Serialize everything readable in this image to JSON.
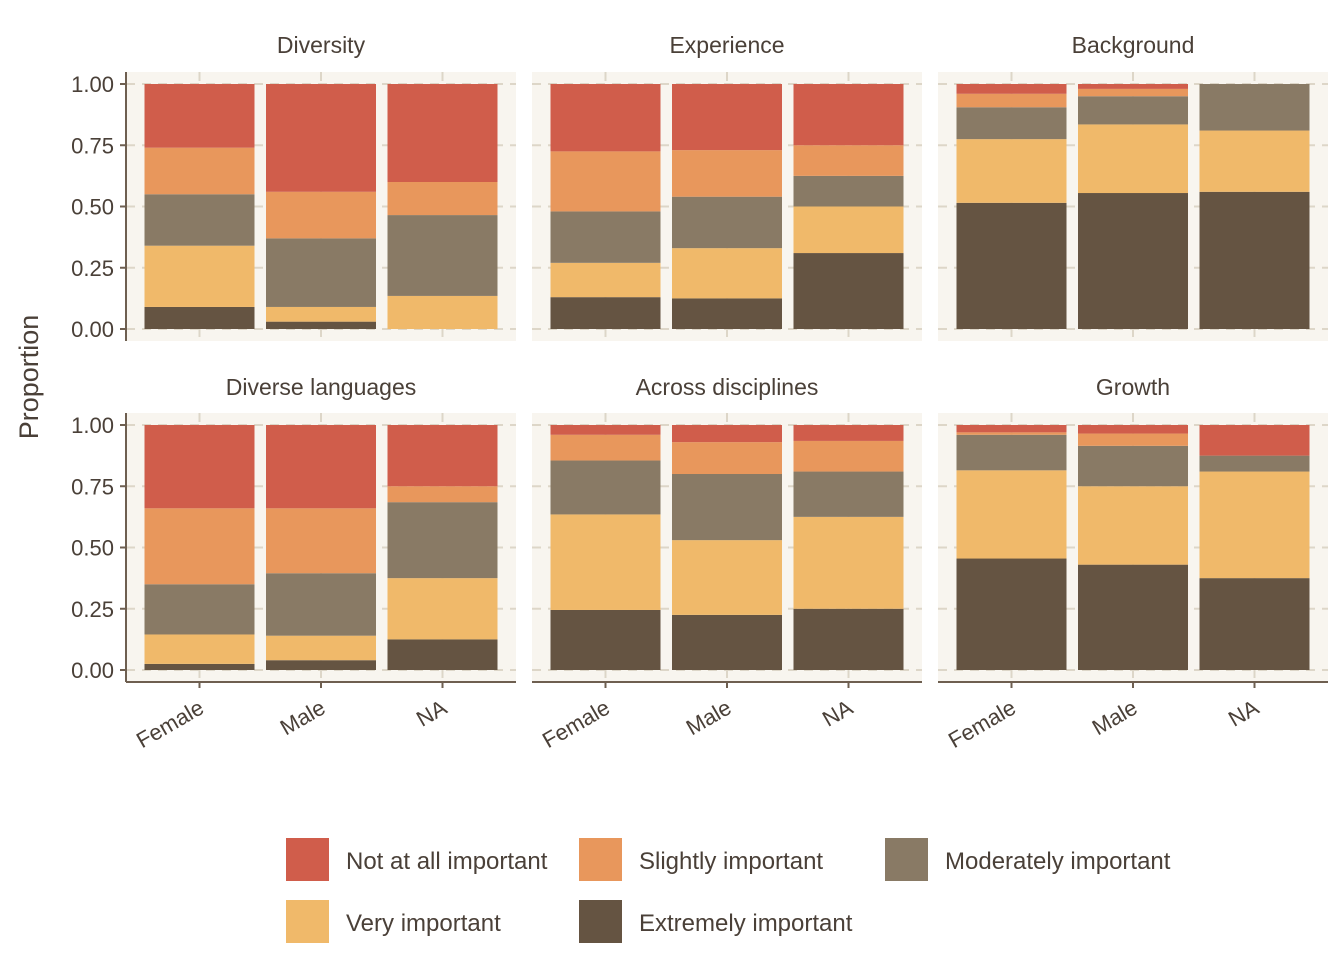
{
  "chart_data": {
    "type": "bar",
    "stacked": true,
    "orientation": "vertical",
    "xlabel": "",
    "ylabel": "Proportion",
    "ylim": [
      0,
      1
    ],
    "yticks": [
      "0.00",
      "0.25",
      "0.50",
      "0.75",
      "1.00"
    ],
    "categories": [
      "Female",
      "Male",
      "NA"
    ],
    "grid": "dashed major gridlines",
    "legend_position": "bottom",
    "levels": [
      {
        "name": "Not at all important",
        "color": "#d05d4b"
      },
      {
        "name": "Slightly important",
        "color": "#e8975c"
      },
      {
        "name": "Moderately important",
        "color": "#897a65"
      },
      {
        "name": "Very important",
        "color": "#f0b96a"
      },
      {
        "name": "Extremely important",
        "color": "#655442"
      }
    ],
    "legend_order": [
      "Not at all important",
      "Slightly important",
      "Moderately important",
      "Very important",
      "Extremely important"
    ],
    "stack_order_bottom_to_top": [
      "Extremely important",
      "Very important",
      "Moderately important",
      "Slightly important",
      "Not at all important"
    ],
    "facets": [
      {
        "title": "Diversity",
        "values": {
          "Female": [
            0.09,
            0.25,
            0.21,
            0.19,
            0.26
          ],
          "Male": [
            0.03,
            0.06,
            0.28,
            0.19,
            0.44
          ],
          "NA": [
            0.0,
            0.135,
            0.33,
            0.135,
            0.4
          ]
        }
      },
      {
        "title": "Experience",
        "values": {
          "Female": [
            0.13,
            0.14,
            0.21,
            0.245,
            0.275
          ],
          "Male": [
            0.125,
            0.205,
            0.21,
            0.19,
            0.27
          ],
          "NA": [
            0.31,
            0.19,
            0.125,
            0.125,
            0.25
          ]
        }
      },
      {
        "title": "Background",
        "values": {
          "Female": [
            0.515,
            0.26,
            0.13,
            0.055,
            0.04
          ],
          "Male": [
            0.555,
            0.28,
            0.115,
            0.03,
            0.02
          ],
          "NA": [
            0.56,
            0.25,
            0.19,
            0.0,
            0.0
          ]
        }
      },
      {
        "title": "Diverse languages",
        "values": {
          "Female": [
            0.025,
            0.12,
            0.205,
            0.31,
            0.34
          ],
          "Male": [
            0.04,
            0.1,
            0.255,
            0.265,
            0.34
          ],
          "NA": [
            0.125,
            0.25,
            0.31,
            0.065,
            0.25
          ]
        }
      },
      {
        "title": "Across disciplines",
        "values": {
          "Female": [
            0.245,
            0.39,
            0.22,
            0.105,
            0.04
          ],
          "Male": [
            0.225,
            0.305,
            0.27,
            0.13,
            0.07
          ],
          "NA": [
            0.25,
            0.375,
            0.185,
            0.125,
            0.065
          ]
        }
      },
      {
        "title": "Growth",
        "values": {
          "Female": [
            0.455,
            0.36,
            0.145,
            0.01,
            0.03
          ],
          "Male": [
            0.43,
            0.32,
            0.165,
            0.05,
            0.035
          ],
          "NA": [
            0.375,
            0.435,
            0.065,
            0.0,
            0.125
          ]
        }
      }
    ]
  }
}
